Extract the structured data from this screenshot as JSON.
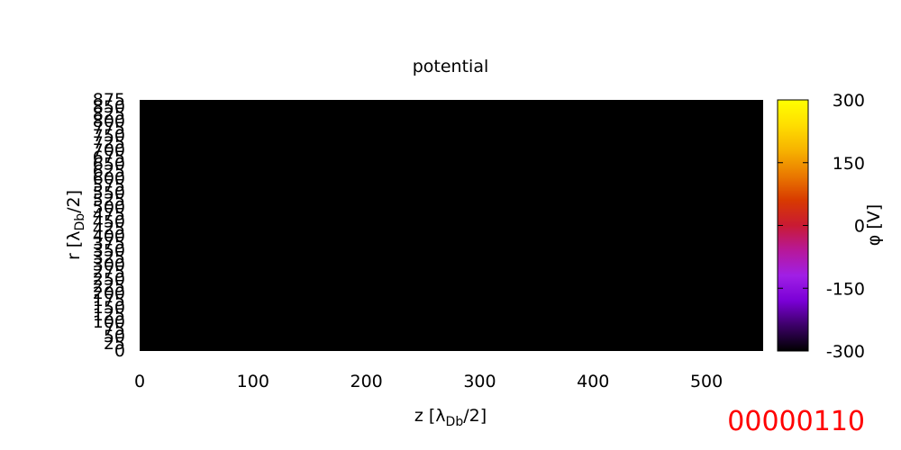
{
  "frame_counter": "00000110",
  "chart_data": {
    "type": "heatmap",
    "title": "potential",
    "xlabel": {
      "main": "z [λ",
      "sub": "Db",
      "tail": "/2]"
    },
    "ylabel": {
      "main": "r [λ",
      "sub": "Db",
      "tail": "/2]"
    },
    "xlim": [
      0,
      550
    ],
    "ylim": [
      0,
      875
    ],
    "x_ticks": [
      "0",
      "100",
      "200",
      "300",
      "400",
      "500"
    ],
    "y_ticks": [
      "0",
      "25",
      "50",
      "75",
      "100",
      "125",
      "150",
      "175",
      "200",
      "225",
      "250",
      "275",
      "300",
      "325",
      "350",
      "375",
      "400",
      "425",
      "450",
      "475",
      "500",
      "525",
      "550",
      "575",
      "600",
      "625",
      "650",
      "675",
      "700",
      "725",
      "750",
      "775",
      "800",
      "825",
      "850",
      "875"
    ],
    "colorbar": {
      "label": "φ [V]",
      "range": [
        -300,
        300
      ],
      "ticks": [
        "300",
        "150",
        "0",
        "-150",
        "-300"
      ],
      "palette": [
        "#000000",
        "#3b0066",
        "#7a00d6",
        "#a01fe6",
        "#b7189a",
        "#c91a33",
        "#d83a00",
        "#ea7a00",
        "#f7b300",
        "#ffde00",
        "#ffff00"
      ]
    },
    "field_value": 0,
    "field_color": "#000000"
  }
}
